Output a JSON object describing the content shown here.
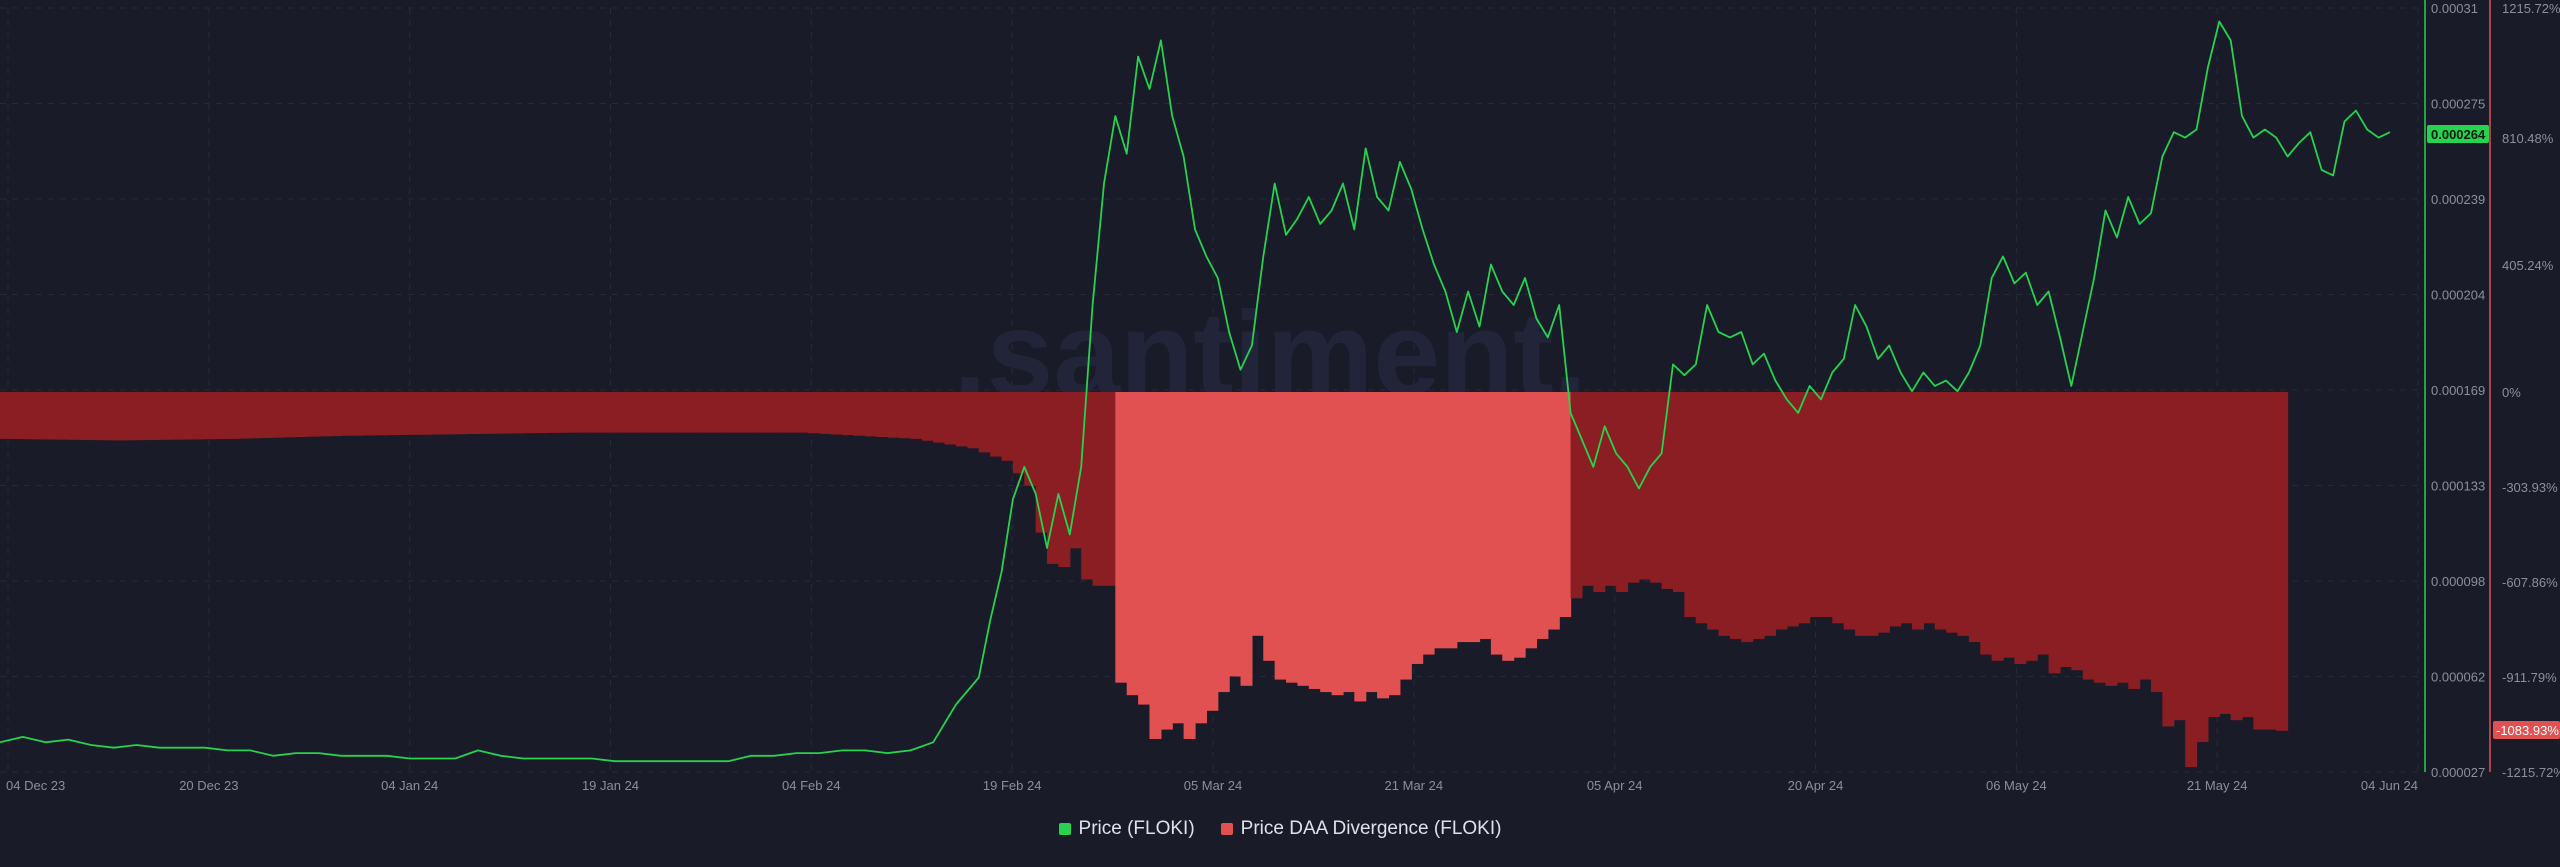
{
  "watermark": ".santiment.",
  "legend": {
    "price_label": "Price (FLOKI)",
    "divergence_label": "Price DAA Divergence (FLOKI)"
  },
  "colors": {
    "background": "#191b29",
    "price_line": "#26d24e",
    "divergence_fill": "#e25152",
    "divergence_dark": "#8b1e22",
    "grid": "#272a38",
    "axis_text": "#8a8f9e"
  },
  "badges": {
    "price": "0.000264",
    "divergence": "-1083.93%"
  },
  "chart_data": {
    "type": "line",
    "x_ticks": [
      "04 Dec 23",
      "20 Dec 23",
      "04 Jan 24",
      "19 Jan 24",
      "04 Feb 24",
      "19 Feb 24",
      "05 Mar 24",
      "21 Mar 24",
      "05 Apr 24",
      "20 Apr 24",
      "06 May 24",
      "21 May 24",
      "04 Jun 24"
    ],
    "y_price_ticks": [
      "0.00031",
      "0.000275",
      "0.000239",
      "0.000204",
      "0.000169",
      "0.000133",
      "0.000098",
      "0.000062",
      "0.000027"
    ],
    "y_divergence_ticks": [
      "1215.72%",
      "810.48%",
      "405.24%",
      "0%",
      "-303.93%",
      "-607.86%",
      "-911.79%",
      "-1215.72%"
    ],
    "price_axis_range": [
      2.7e-05,
      0.00031
    ],
    "divergence_axis_range": [
      -1215.72,
      1215.72
    ],
    "grid": true,
    "legend_position": "bottom-center",
    "series": [
      {
        "name": "Price (FLOKI)",
        "axis": "left-price",
        "points": [
          [
            0,
            3.8e-05
          ],
          [
            2,
            4e-05
          ],
          [
            4,
            3.8e-05
          ],
          [
            6,
            3.9e-05
          ],
          [
            8,
            3.7e-05
          ],
          [
            10,
            3.6e-05
          ],
          [
            12,
            3.7e-05
          ],
          [
            14,
            3.6e-05
          ],
          [
            16,
            3.6e-05
          ],
          [
            18,
            3.6e-05
          ],
          [
            20,
            3.5e-05
          ],
          [
            22,
            3.5e-05
          ],
          [
            24,
            3.3e-05
          ],
          [
            26,
            3.4e-05
          ],
          [
            28,
            3.4e-05
          ],
          [
            30,
            3.3e-05
          ],
          [
            32,
            3.3e-05
          ],
          [
            34,
            3.3e-05
          ],
          [
            36,
            3.2e-05
          ],
          [
            38,
            3.2e-05
          ],
          [
            40,
            3.2e-05
          ],
          [
            42,
            3.5e-05
          ],
          [
            44,
            3.3e-05
          ],
          [
            46,
            3.2e-05
          ],
          [
            48,
            3.2e-05
          ],
          [
            50,
            3.2e-05
          ],
          [
            52,
            3.2e-05
          ],
          [
            54,
            3.1e-05
          ],
          [
            56,
            3.1e-05
          ],
          [
            58,
            3.1e-05
          ],
          [
            60,
            3.1e-05
          ],
          [
            62,
            3.1e-05
          ],
          [
            64,
            3.1e-05
          ],
          [
            66,
            3.3e-05
          ],
          [
            68,
            3.3e-05
          ],
          [
            70,
            3.4e-05
          ],
          [
            72,
            3.4e-05
          ],
          [
            74,
            3.5e-05
          ],
          [
            76,
            3.5e-05
          ],
          [
            78,
            3.4e-05
          ],
          [
            80,
            3.5e-05
          ],
          [
            82,
            3.8e-05
          ],
          [
            84,
            5.2e-05
          ],
          [
            86,
            6.2e-05
          ],
          [
            87,
            8.3e-05
          ],
          [
            88,
            0.000101
          ],
          [
            89,
            0.000128
          ],
          [
            90,
            0.00014
          ],
          [
            91,
            0.00013
          ],
          [
            92,
            0.00011
          ],
          [
            93,
            0.00013
          ],
          [
            94,
            0.000115
          ],
          [
            95,
            0.00014
          ],
          [
            96,
            0.0002
          ],
          [
            97,
            0.000245
          ],
          [
            98,
            0.00027
          ],
          [
            99,
            0.000256
          ],
          [
            100,
            0.000292
          ],
          [
            101,
            0.00028
          ],
          [
            102,
            0.000298
          ],
          [
            103,
            0.00027
          ],
          [
            104,
            0.000255
          ],
          [
            105,
            0.000228
          ],
          [
            106,
            0.000218
          ],
          [
            107,
            0.00021
          ],
          [
            108,
            0.00019
          ],
          [
            109,
            0.000176
          ],
          [
            110,
            0.000185
          ],
          [
            111,
            0.000218
          ],
          [
            112,
            0.000245
          ],
          [
            113,
            0.000226
          ],
          [
            114,
            0.000232
          ],
          [
            115,
            0.00024
          ],
          [
            116,
            0.00023
          ],
          [
            117,
            0.000235
          ],
          [
            118,
            0.000245
          ],
          [
            119,
            0.000228
          ],
          [
            120,
            0.000258
          ],
          [
            121,
            0.00024
          ],
          [
            122,
            0.000235
          ],
          [
            123,
            0.000253
          ],
          [
            124,
            0.000243
          ],
          [
            125,
            0.000228
          ],
          [
            126,
            0.000215
          ],
          [
            127,
            0.000205
          ],
          [
            128,
            0.00019
          ],
          [
            129,
            0.000205
          ],
          [
            130,
            0.000192
          ],
          [
            131,
            0.000215
          ],
          [
            132,
            0.000205
          ],
          [
            133,
            0.0002
          ],
          [
            134,
            0.00021
          ],
          [
            135,
            0.000195
          ],
          [
            136,
            0.000188
          ],
          [
            137,
            0.0002
          ],
          [
            138,
            0.00016
          ],
          [
            139,
            0.00015
          ],
          [
            140,
            0.00014
          ],
          [
            141,
            0.000155
          ],
          [
            142,
            0.000145
          ],
          [
            143,
            0.00014
          ],
          [
            144,
            0.000132
          ],
          [
            145,
            0.00014
          ],
          [
            146,
            0.000145
          ],
          [
            147,
            0.000178
          ],
          [
            148,
            0.000174
          ],
          [
            149,
            0.000178
          ],
          [
            150,
            0.0002
          ],
          [
            151,
            0.00019
          ],
          [
            152,
            0.000188
          ],
          [
            153,
            0.00019
          ],
          [
            154,
            0.000178
          ],
          [
            155,
            0.000182
          ],
          [
            156,
            0.000172
          ],
          [
            157,
            0.000165
          ],
          [
            158,
            0.00016
          ],
          [
            159,
            0.00017
          ],
          [
            160,
            0.000165
          ],
          [
            161,
            0.000175
          ],
          [
            162,
            0.00018
          ],
          [
            163,
            0.0002
          ],
          [
            164,
            0.000192
          ],
          [
            165,
            0.00018
          ],
          [
            166,
            0.000185
          ],
          [
            167,
            0.000175
          ],
          [
            168,
            0.000168
          ],
          [
            169,
            0.000175
          ],
          [
            170,
            0.00017
          ],
          [
            171,
            0.000172
          ],
          [
            172,
            0.000168
          ],
          [
            173,
            0.000175
          ],
          [
            174,
            0.000185
          ],
          [
            175,
            0.00021
          ],
          [
            176,
            0.000218
          ],
          [
            177,
            0.000208
          ],
          [
            178,
            0.000212
          ],
          [
            179,
            0.0002
          ],
          [
            180,
            0.000205
          ],
          [
            181,
            0.000188
          ],
          [
            182,
            0.00017
          ],
          [
            183,
            0.00019
          ],
          [
            184,
            0.00021
          ],
          [
            185,
            0.000235
          ],
          [
            186,
            0.000225
          ],
          [
            187,
            0.00024
          ],
          [
            188,
            0.00023
          ],
          [
            189,
            0.000234
          ],
          [
            190,
            0.000255
          ],
          [
            191,
            0.000264
          ],
          [
            192,
            0.000262
          ],
          [
            193,
            0.000265
          ],
          [
            194,
            0.000288
          ],
          [
            195,
            0.000305
          ],
          [
            196,
            0.000298
          ],
          [
            197,
            0.00027
          ],
          [
            198,
            0.000262
          ],
          [
            199,
            0.000265
          ],
          [
            200,
            0.000262
          ],
          [
            201,
            0.000255
          ],
          [
            202,
            0.00026
          ],
          [
            203,
            0.000264
          ],
          [
            204,
            0.00025
          ],
          [
            205,
            0.000248
          ],
          [
            206,
            0.000268
          ],
          [
            207,
            0.000272
          ],
          [
            208,
            0.000265
          ],
          [
            209,
            0.000262
          ],
          [
            210,
            0.000264
          ]
        ]
      },
      {
        "name": "Price DAA Divergence (FLOKI)",
        "axis": "right-percent",
        "type": "bar",
        "points": [
          [
            0,
            -150
          ],
          [
            10,
            -155
          ],
          [
            20,
            -150
          ],
          [
            30,
            -140
          ],
          [
            40,
            -135
          ],
          [
            50,
            -130
          ],
          [
            60,
            -130
          ],
          [
            70,
            -130
          ],
          [
            80,
            -150
          ],
          [
            85,
            -180
          ],
          [
            88,
            -220
          ],
          [
            90,
            -300
          ],
          [
            91,
            -450
          ],
          [
            92,
            -550
          ],
          [
            93,
            -560
          ],
          [
            94,
            -500
          ],
          [
            95,
            -600
          ],
          [
            96,
            -620
          ],
          [
            97,
            -620
          ],
          [
            98,
            -930
          ],
          [
            99,
            -970
          ],
          [
            100,
            -1000
          ],
          [
            101,
            -1110
          ],
          [
            102,
            -1080
          ],
          [
            103,
            -1060
          ],
          [
            104,
            -1110
          ],
          [
            105,
            -1060
          ],
          [
            106,
            -1020
          ],
          [
            107,
            -960
          ],
          [
            108,
            -910
          ],
          [
            109,
            -940
          ],
          [
            110,
            -780
          ],
          [
            111,
            -860
          ],
          [
            112,
            -920
          ],
          [
            113,
            -930
          ],
          [
            114,
            -940
          ],
          [
            115,
            -950
          ],
          [
            116,
            -960
          ],
          [
            117,
            -970
          ],
          [
            118,
            -960
          ],
          [
            119,
            -990
          ],
          [
            120,
            -960
          ],
          [
            121,
            -980
          ],
          [
            122,
            -970
          ],
          [
            123,
            -920
          ],
          [
            124,
            -870
          ],
          [
            125,
            -840
          ],
          [
            126,
            -820
          ],
          [
            127,
            -820
          ],
          [
            128,
            -800
          ],
          [
            129,
            -800
          ],
          [
            130,
            -790
          ],
          [
            131,
            -840
          ],
          [
            132,
            -860
          ],
          [
            133,
            -850
          ],
          [
            134,
            -820
          ],
          [
            135,
            -790
          ],
          [
            136,
            -760
          ],
          [
            137,
            -720
          ],
          [
            138,
            -660
          ],
          [
            139,
            -620
          ],
          [
            140,
            -640
          ],
          [
            141,
            -620
          ],
          [
            142,
            -640
          ],
          [
            143,
            -610
          ],
          [
            144,
            -600
          ],
          [
            145,
            -610
          ],
          [
            146,
            -630
          ],
          [
            147,
            -640
          ],
          [
            148,
            -720
          ],
          [
            149,
            -740
          ],
          [
            150,
            -760
          ],
          [
            151,
            -780
          ],
          [
            152,
            -790
          ],
          [
            153,
            -800
          ],
          [
            154,
            -790
          ],
          [
            155,
            -780
          ],
          [
            156,
            -760
          ],
          [
            157,
            -750
          ],
          [
            158,
            -740
          ],
          [
            159,
            -720
          ],
          [
            160,
            -720
          ],
          [
            161,
            -740
          ],
          [
            162,
            -760
          ],
          [
            163,
            -780
          ],
          [
            164,
            -780
          ],
          [
            165,
            -770
          ],
          [
            166,
            -750
          ],
          [
            167,
            -740
          ],
          [
            168,
            -760
          ],
          [
            169,
            -740
          ],
          [
            170,
            -760
          ],
          [
            171,
            -770
          ],
          [
            172,
            -780
          ],
          [
            173,
            -800
          ],
          [
            174,
            -840
          ],
          [
            175,
            -860
          ],
          [
            176,
            -850
          ],
          [
            177,
            -870
          ],
          [
            178,
            -860
          ],
          [
            179,
            -840
          ],
          [
            180,
            -900
          ],
          [
            181,
            -880
          ],
          [
            182,
            -890
          ],
          [
            183,
            -920
          ],
          [
            184,
            -930
          ],
          [
            185,
            -940
          ],
          [
            186,
            -930
          ],
          [
            187,
            -950
          ],
          [
            188,
            -920
          ],
          [
            189,
            -960
          ],
          [
            190,
            -1070
          ],
          [
            191,
            -1050
          ],
          [
            192,
            -1200
          ],
          [
            193,
            -1120
          ],
          [
            194,
            -1040
          ],
          [
            195,
            -1030
          ],
          [
            196,
            -1050
          ],
          [
            197,
            -1040
          ],
          [
            198,
            -1080
          ],
          [
            199,
            -1080
          ],
          [
            200,
            -1084
          ]
        ]
      }
    ]
  }
}
